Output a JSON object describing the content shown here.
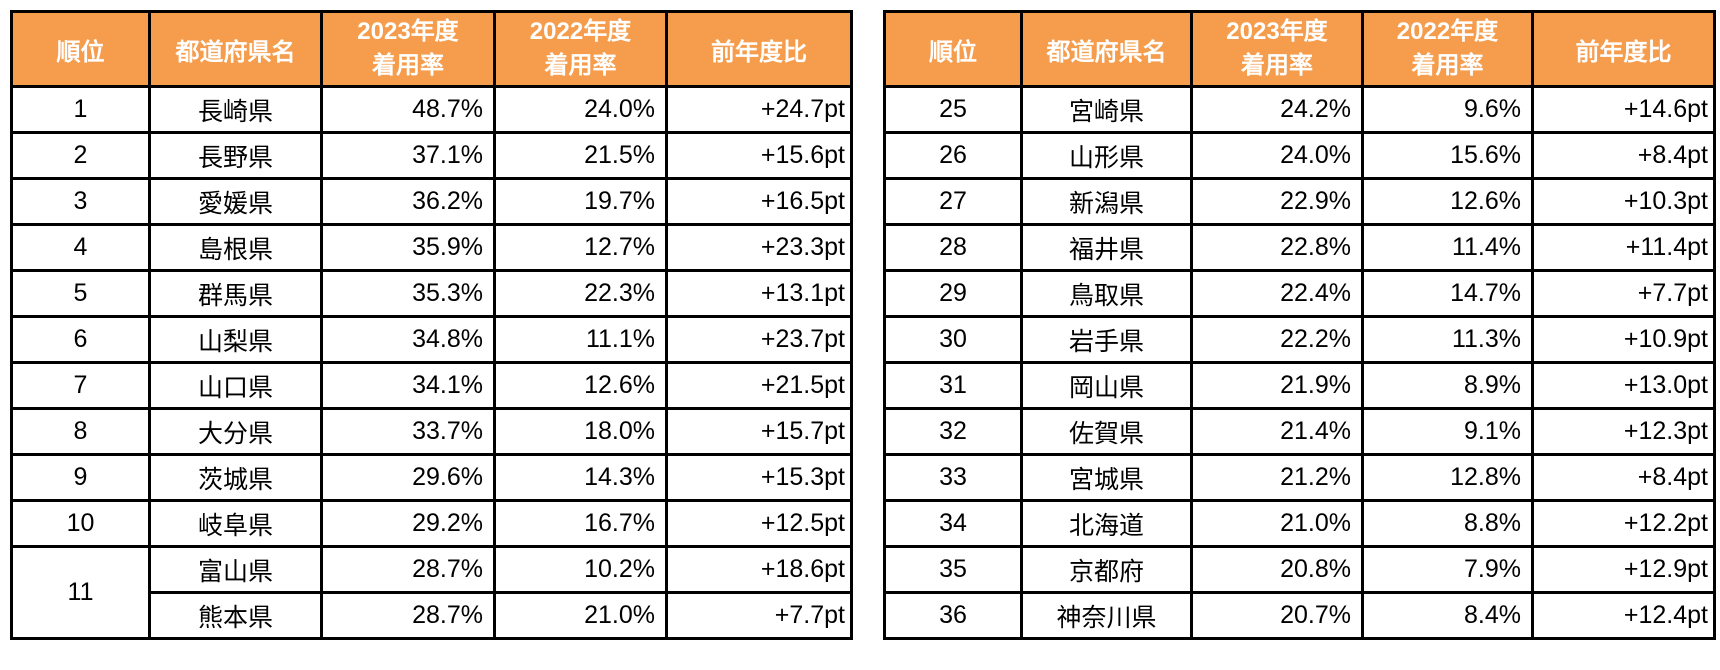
{
  "colors": {
    "header_bg": "#F59D4D",
    "header_text": "#FFFFFF",
    "border": "#000000",
    "row_bg": "#FFFFFF",
    "body_text": "#000000"
  },
  "header": {
    "rank": "順位",
    "prefecture": "都道府県名",
    "rate2023_line1": "2023年度",
    "rate2023_line2": "着用率",
    "rate2022_line1": "2022年度",
    "rate2022_line2": "着用率",
    "yoy": "前年度比"
  },
  "tables": [
    {
      "position": "left",
      "rows": [
        {
          "rank": "1",
          "rank_rowspan": 1,
          "prefecture": "長崎県",
          "rate2023": "48.7%",
          "rate2022": "24.0%",
          "yoy": "+24.7pt"
        },
        {
          "rank": "2",
          "rank_rowspan": 1,
          "prefecture": "長野県",
          "rate2023": "37.1%",
          "rate2022": "21.5%",
          "yoy": "+15.6pt"
        },
        {
          "rank": "3",
          "rank_rowspan": 1,
          "prefecture": "愛媛県",
          "rate2023": "36.2%",
          "rate2022": "19.7%",
          "yoy": "+16.5pt"
        },
        {
          "rank": "4",
          "rank_rowspan": 1,
          "prefecture": "島根県",
          "rate2023": "35.9%",
          "rate2022": "12.7%",
          "yoy": "+23.3pt"
        },
        {
          "rank": "5",
          "rank_rowspan": 1,
          "prefecture": "群馬県",
          "rate2023": "35.3%",
          "rate2022": "22.3%",
          "yoy": "+13.1pt"
        },
        {
          "rank": "6",
          "rank_rowspan": 1,
          "prefecture": "山梨県",
          "rate2023": "34.8%",
          "rate2022": "11.1%",
          "yoy": "+23.7pt"
        },
        {
          "rank": "7",
          "rank_rowspan": 1,
          "prefecture": "山口県",
          "rate2023": "34.1%",
          "rate2022": "12.6%",
          "yoy": "+21.5pt"
        },
        {
          "rank": "8",
          "rank_rowspan": 1,
          "prefecture": "大分県",
          "rate2023": "33.7%",
          "rate2022": "18.0%",
          "yoy": "+15.7pt"
        },
        {
          "rank": "9",
          "rank_rowspan": 1,
          "prefecture": "茨城県",
          "rate2023": "29.6%",
          "rate2022": "14.3%",
          "yoy": "+15.3pt"
        },
        {
          "rank": "10",
          "rank_rowspan": 1,
          "prefecture": "岐阜県",
          "rate2023": "29.2%",
          "rate2022": "16.7%",
          "yoy": "+12.5pt"
        },
        {
          "rank": "11",
          "rank_rowspan": 2,
          "prefecture": "富山県",
          "rate2023": "28.7%",
          "rate2022": "10.2%",
          "yoy": "+18.6pt"
        },
        {
          "rank": null,
          "rank_rowspan": 0,
          "prefecture": "熊本県",
          "rate2023": "28.7%",
          "rate2022": "21.0%",
          "yoy": "+7.7pt"
        }
      ]
    },
    {
      "position": "right",
      "rows": [
        {
          "rank": "25",
          "rank_rowspan": 1,
          "prefecture": "宮崎県",
          "rate2023": "24.2%",
          "rate2022": "9.6%",
          "yoy": "+14.6pt"
        },
        {
          "rank": "26",
          "rank_rowspan": 1,
          "prefecture": "山形県",
          "rate2023": "24.0%",
          "rate2022": "15.6%",
          "yoy": "+8.4pt"
        },
        {
          "rank": "27",
          "rank_rowspan": 1,
          "prefecture": "新潟県",
          "rate2023": "22.9%",
          "rate2022": "12.6%",
          "yoy": "+10.3pt"
        },
        {
          "rank": "28",
          "rank_rowspan": 1,
          "prefecture": "福井県",
          "rate2023": "22.8%",
          "rate2022": "11.4%",
          "yoy": "+11.4pt"
        },
        {
          "rank": "29",
          "rank_rowspan": 1,
          "prefecture": "鳥取県",
          "rate2023": "22.4%",
          "rate2022": "14.7%",
          "yoy": "+7.7pt"
        },
        {
          "rank": "30",
          "rank_rowspan": 1,
          "prefecture": "岩手県",
          "rate2023": "22.2%",
          "rate2022": "11.3%",
          "yoy": "+10.9pt"
        },
        {
          "rank": "31",
          "rank_rowspan": 1,
          "prefecture": "岡山県",
          "rate2023": "21.9%",
          "rate2022": "8.9%",
          "yoy": "+13.0pt"
        },
        {
          "rank": "32",
          "rank_rowspan": 1,
          "prefecture": "佐賀県",
          "rate2023": "21.4%",
          "rate2022": "9.1%",
          "yoy": "+12.3pt"
        },
        {
          "rank": "33",
          "rank_rowspan": 1,
          "prefecture": "宮城県",
          "rate2023": "21.2%",
          "rate2022": "12.8%",
          "yoy": "+8.4pt"
        },
        {
          "rank": "34",
          "rank_rowspan": 1,
          "prefecture": "北海道",
          "rate2023": "21.0%",
          "rate2022": "8.8%",
          "yoy": "+12.2pt"
        },
        {
          "rank": "35",
          "rank_rowspan": 1,
          "prefecture": "京都府",
          "rate2023": "20.8%",
          "rate2022": "7.9%",
          "yoy": "+12.9pt"
        },
        {
          "rank": "36",
          "rank_rowspan": 1,
          "prefecture": "神奈川県",
          "rate2023": "20.7%",
          "rate2022": "8.4%",
          "yoy": "+12.4pt"
        }
      ]
    }
  ]
}
